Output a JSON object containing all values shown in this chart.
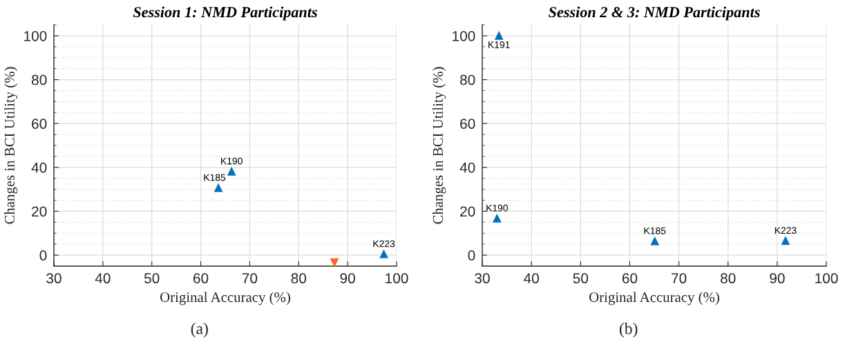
{
  "chart_data": [
    {
      "type": "scatter",
      "title": "Session 1: NMD Participants",
      "xlabel": "Original Accuracy (%)",
      "ylabel": "Changes in BCI Utility (%)",
      "xlim": [
        30,
        100
      ],
      "ylim": [
        -5,
        105
      ],
      "xticks": [
        30,
        40,
        50,
        60,
        70,
        80,
        90,
        100
      ],
      "yticks": [
        0,
        20,
        40,
        60,
        80,
        100,
        {
          "value": 5,
          "label": null
        },
        {
          "value": 10,
          "label": null
        },
        {
          "value": 15,
          "label": null
        },
        {
          "value": 25,
          "label": null
        },
        {
          "value": 30,
          "label": null
        },
        {
          "value": 35,
          "label": null
        },
        {
          "value": 45,
          "label": null
        },
        {
          "value": 50,
          "label": null
        },
        {
          "value": 55,
          "label": null
        },
        {
          "value": 65,
          "label": null
        },
        {
          "value": 70,
          "label": null
        },
        {
          "value": 75,
          "label": null
        },
        {
          "value": 85,
          "label": null
        },
        {
          "value": 90,
          "label": null
        },
        {
          "value": 95,
          "label": null
        },
        {
          "value": 105,
          "label": null
        }
      ],
      "grid": true,
      "marker": "triangle",
      "series": [
        {
          "color": "#0072bd",
          "x": [
            63.6,
            66.3,
            97.4
          ],
          "values": [
            30.8,
            38.3,
            0.6
          ]
        },
        {
          "color": "#f6692b",
          "marker": "triangle_down",
          "x": [
            87.3
          ],
          "values": [
            -3.5
          ]
        }
      ],
      "annotations": [
        {
          "text": "K185",
          "x": 63.6,
          "y": 30.8
        },
        {
          "text": "K190",
          "x": 66.3,
          "y": 38.3
        },
        {
          "text": "K223",
          "x": 97.4,
          "y": 0.6
        },
        "(a)"
      ]
    },
    {
      "type": "scatter",
      "title": "Session 2 & 3: NMD Participants",
      "xlabel": "Original Accuracy (%)",
      "ylabel": "Changes in BCI Utility (%)",
      "xlim": [
        30,
        100
      ],
      "ylim": [
        -5,
        105
      ],
      "xticks": [
        30,
        40,
        50,
        60,
        70,
        80,
        90,
        100
      ],
      "yticks": [
        0,
        20,
        40,
        60,
        80,
        100,
        {
          "value": 5,
          "label": null
        },
        {
          "value": 10,
          "label": null
        },
        {
          "value": 15,
          "label": null
        },
        {
          "value": 25,
          "label": null
        },
        {
          "value": 30,
          "label": null
        },
        {
          "value": 35,
          "label": null
        },
        {
          "value": 45,
          "label": null
        },
        {
          "value": 50,
          "label": null
        },
        {
          "value": 55,
          "label": null
        },
        {
          "value": 65,
          "label": null
        },
        {
          "value": 70,
          "label": null
        },
        {
          "value": 75,
          "label": null
        },
        {
          "value": 85,
          "label": null
        },
        {
          "value": 90,
          "label": null
        },
        {
          "value": 95,
          "label": null
        },
        {
          "value": 105,
          "label": null
        }
      ],
      "grid": true,
      "marker": "triangle",
      "series": [
        {
          "color": "#0072bd",
          "x": [
            33.4,
            33.0,
            65.1,
            91.7
          ],
          "values": [
            100.2,
            16.9,
            6.5,
            6.7
          ]
        }
      ],
      "annotations": [
        {
          "text": "K191",
          "x": 33.4,
          "y": 100.2
        },
        {
          "text": "K190",
          "x": 33.0,
          "y": 16.9
        },
        {
          "text": "K185",
          "x": 65.1,
          "y": 6.5
        },
        {
          "text": "K223",
          "x": 91.7,
          "y": 6.7
        },
        "(b)"
      ]
    }
  ]
}
